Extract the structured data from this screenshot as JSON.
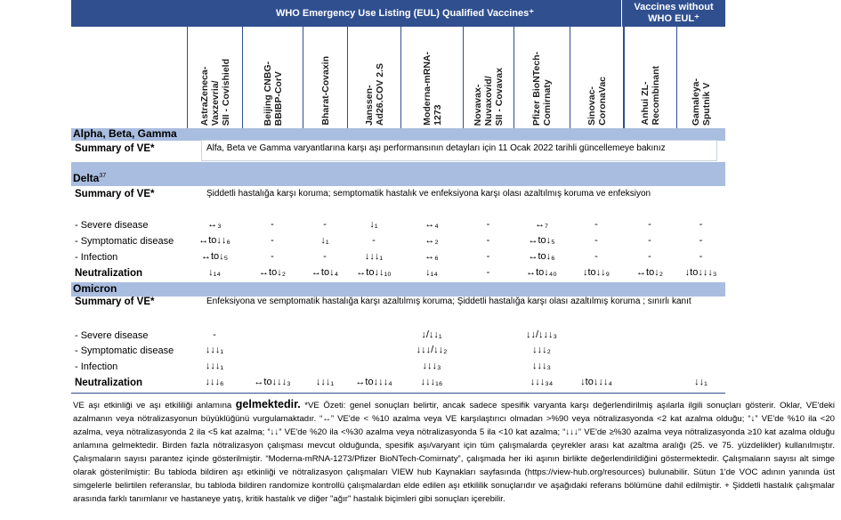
{
  "header": {
    "group_eul": "WHO Emergency Use Listing (EUL) Qualified Vaccines⁺",
    "group_non_eul": "Vaccines without WHO EUL⁺"
  },
  "columns": [
    [
      "AstraZeneca-",
      "Vaxzevria/",
      "SII - Covishield"
    ],
    [
      "Beijing CNBG-",
      "BBIBP-CorV"
    ],
    [
      "Bharat-Covaxin"
    ],
    [
      "Janssen-",
      "Ad26.COV 2.S"
    ],
    [
      "Moderna-mRNA-",
      "1273"
    ],
    [
      "Novavax-",
      "Nuvaxovid/",
      "SII - Covavax"
    ],
    [
      "Pfizer BioNTech-",
      "Comirnaty"
    ],
    [
      "Sinovac-",
      "CoronaVac"
    ],
    [
      "Anhui ZL-",
      "Recombinant"
    ],
    [
      "Gamaleya-",
      "Sputnik V"
    ]
  ],
  "sections": [
    {
      "title": "Alpha, Beta, Gamma",
      "summary_label": "Summary of VE*",
      "summary": "Alfa, Beta ve Gamma  varyantlarına karşı aşı performansının detayları için 11 Ocak 2022 tarihli güncellemeye bakınız",
      "rows": []
    },
    {
      "title": "Delta",
      "ref": "37",
      "summary_label": "Summary of VE*",
      "summary": "Şiddetli hastalığa karşı koruma; semptomatik hastalık ve enfeksiyona karşı olası azaltılmış koruma ve enfeksiyon",
      "rows": [
        {
          "label": "- Severe disease",
          "cells": [
            "↔₃",
            "-",
            "-",
            "↓₁",
            "↔₄",
            "-",
            "↔₇",
            "-",
            "-",
            "-"
          ]
        },
        {
          "label": "- Symptomatic disease",
          "cells": [
            "↔to↓↓₆",
            "-",
            "↓₁",
            "-",
            "↔₂",
            "-",
            "↔to↓₅",
            "-",
            "-",
            "-"
          ]
        },
        {
          "label": "- Infection",
          "cells": [
            "↔to↓₅",
            "-",
            "-",
            "↓↓↓₁",
            "↔₆",
            "-",
            "↔to↓₆",
            "-",
            "-",
            "-"
          ]
        },
        {
          "label": "Neutralization",
          "bold": true,
          "cells": [
            "↓₁₄",
            "↔to↓₂",
            "↔to↓₄",
            "↔to↓↓₁₀",
            "↓₁₄",
            "-",
            "↔to↓₄₀",
            "↓to↓↓₉",
            "↔to↓₂",
            "↓to↓↓↓₃"
          ]
        }
      ]
    },
    {
      "title": "Omicron",
      "summary_label": "Summary of VE*",
      "summary": "Enfeksiyona ve semptomatik hastalığa karşı azaltılmış koruma; Şiddetli hastalığa karşı olası azaltılmış koruma ; sınırlı kanıt",
      "rows": [
        {
          "label": "- Severe disease",
          "cells": [
            "-",
            null,
            null,
            null,
            "↓/↓↓₁",
            null,
            "↓↓/↓↓↓₃",
            null,
            null,
            null
          ]
        },
        {
          "label": "- Symptomatic disease",
          "cells": [
            "↓↓↓₁",
            null,
            null,
            null,
            "↓↓↓/↓↓₂",
            null,
            "↓↓↓₂",
            null,
            null,
            null
          ]
        },
        {
          "label": "- Infection",
          "cells": [
            "↓↓↓₁",
            null,
            null,
            null,
            "↓↓↓₃",
            null,
            "↓↓↓₃",
            null,
            null,
            null
          ]
        },
        {
          "label": "Neutralization",
          "bold": true,
          "cells": [
            "↓↓↓₆",
            "↔to↓↓↓₃",
            "↓↓↓₁",
            "↔to↓↓↓₄",
            "↓↓↓₁₆",
            null,
            "↓↓↓₃₄",
            "↓to↓↓↓₄",
            null,
            "↓↓₁"
          ]
        }
      ]
    }
  ],
  "footnote": {
    "lead": "VE aşı etkinliği ve aşı etkililiği anlamına ",
    "emph": "gelmektedir.",
    "body": " *VE Özeti: genel sonuçları belirtir, ancak sadece spesifik varyanta karşı değerlendirilmiş aşılarla ilgili sonuçları gösterir. Oklar, VE'deki azalmanın veya nötralizasyonun büyüklüğünü vurgulamaktadır. “↔” VE'de < %10 azalma veya VE karşılaştırıcı olmadan  >%90 veya nötralizasyonda <2 kat azalma olduğu; “↓” VE'de %10 ila <20 azalma, veya nötralizasyonda 2 ila <5 kat azalma; “↓↓” VE'de %20 ila <%30 azalma veya nötralizasyonda 5 ila <10 kat azalma; “↓↓↓” VE'de ≥%30 azalma veya nötralizasyonda ≥10 kat azalma olduğu anlamına gelmektedir. Birden fazla nötralizasyon çalışması mevcut olduğunda, spesifik aşı/varyant için tüm çalışmalarda çeyrekler arası kat azaltma aralığı (25. ve 75. yüzdelikler) kullanılmıştır. Çalışmaların sayısı parantez içinde gösterilmiştir. “Moderna-mRNA-1273/Pfizer BioNTech-Comirnaty”, çalışmada her iki aşının birlikte değerlendirildiğini göstermektedir. Çalışmaların sayısı alt simge olarak gösterilmiştir: Bu tabloda bildiren aşı etkinliği ve nötralizasyon çalışmaları VIEW hub Kaynakları sayfasında (https://view-hub.org/resources) bulunabilir. Sütun 1'de VOC adının yanında üst simgelerle belirtilen referanslar, bu tabloda bildiren randomize kontrollü çalışmalardan elde edilen aşı etkililik sonuçlarıdır ve aşağıdaki referans bölümüne dahil edilmiştir. + Şiddetli hastalık çalışmalar arasında farklı tanımlanır ve hastaneye yatış, kritik hastalık ve diğer \"ağır\" hastalık biçimleri gibi sonuçları içerebilir."
  }
}
